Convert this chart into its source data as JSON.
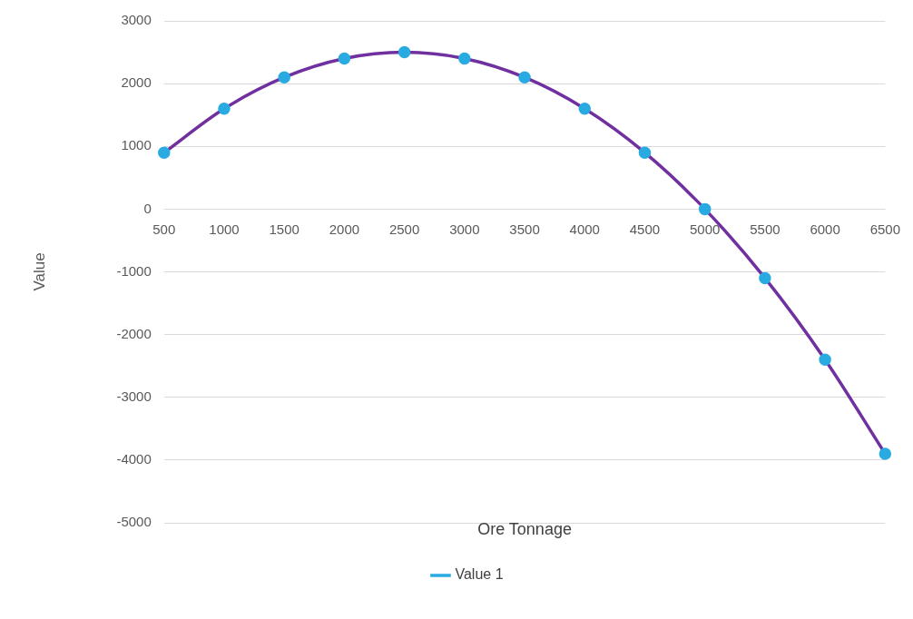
{
  "chart_data": {
    "type": "line",
    "xlabel": "Ore Tonnage",
    "ylabel": "Value",
    "categories": [
      "500",
      "1000",
      "1500",
      "2000",
      "2500",
      "3000",
      "3500",
      "4000",
      "4500",
      "5000",
      "5500",
      "6000",
      "6500"
    ],
    "series": [
      {
        "name": "Value 1",
        "color": "#7030a0",
        "values": [
          900,
          1600,
          2100,
          2400,
          2500,
          2400,
          2100,
          1600,
          900,
          0,
          -1100,
          -2400,
          -3900
        ]
      }
    ],
    "ylim": [
      -5000,
      3000
    ],
    "yticks": [
      -5000,
      -4000,
      -3000,
      -2000,
      -1000,
      0,
      1000,
      2000,
      3000
    ],
    "grid": "y",
    "legend": "bottom",
    "marker": "circle",
    "line_style": "solid"
  }
}
